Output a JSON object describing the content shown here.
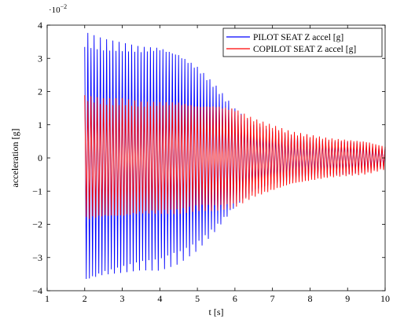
{
  "chart_data": {
    "type": "line",
    "title": "",
    "xlabel": "t [s]",
    "ylabel": "acceleration [g]",
    "y_multiplier": "·10",
    "y_multiplier_exponent": "−2",
    "xlim": [
      1,
      10
    ],
    "ylim": [
      -4,
      4
    ],
    "xticks": [
      1,
      2,
      3,
      4,
      5,
      6,
      7,
      8,
      9,
      10
    ],
    "xtick_labels": [
      "1",
      "2",
      "3",
      "4",
      "5",
      "6",
      "7",
      "8",
      "9",
      "10"
    ],
    "yticks": [
      -4,
      -3,
      -2,
      -1,
      0,
      1,
      2,
      3,
      4
    ],
    "ytick_labels": [
      "−4",
      "−3",
      "−2",
      "−1",
      "0",
      "1",
      "2",
      "3",
      "4"
    ],
    "grid": false,
    "legend_position": "top-right",
    "x": [
      2,
      2.5,
      3,
      3.5,
      4,
      4.5,
      5,
      5.5,
      6,
      6.5,
      7,
      7.5,
      8,
      8.5,
      9,
      9.5,
      10
    ],
    "series": [
      {
        "name": "PILOT SEAT Z accel [g]",
        "color": "#0000ff",
        "envelope_amplitude": [
          3.8,
          3.6,
          3.5,
          3.4,
          3.4,
          3.2,
          2.8,
          2.2,
          1.5,
          1.0,
          0.8,
          0.7,
          0.6,
          0.5,
          0.5,
          0.4,
          0.3
        ],
        "oscillation_frequency_hz": 12
      },
      {
        "name": "COPILOT SEAT Z accel [g]",
        "color": "#ff0000",
        "envelope_amplitude": [
          1.9,
          1.8,
          1.8,
          1.7,
          1.7,
          1.7,
          1.6,
          1.6,
          1.5,
          1.2,
          1.0,
          0.8,
          0.7,
          0.6,
          0.55,
          0.5,
          0.35
        ],
        "oscillation_frequency_hz": 12
      }
    ]
  }
}
